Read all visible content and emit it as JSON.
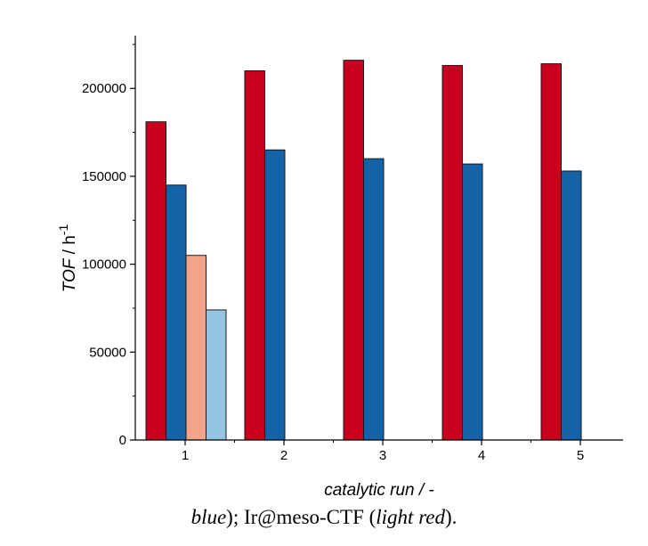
{
  "chart_data": {
    "type": "bar",
    "categories": [
      "1",
      "2",
      "3",
      "4",
      "5"
    ],
    "series": [
      {
        "values": [
          181000,
          210000,
          216000,
          213000,
          214000
        ],
        "color": "#c8001e"
      },
      {
        "values": [
          145000,
          165000,
          160000,
          157000,
          153000
        ],
        "color": "#1462a8"
      },
      {
        "values": [
          105000,
          null,
          null,
          null,
          null
        ],
        "color": "#f3a58b"
      },
      {
        "values": [
          74000,
          null,
          null,
          null,
          null
        ],
        "color": "#95c4e1"
      }
    ],
    "xlabel": "catalytic run / -",
    "ylabel_main": "TOF",
    "ylabel_unit": " / h",
    "ylabel_sup": "-1",
    "ylim": [
      0,
      230000
    ],
    "yticks": [
      0,
      50000,
      100000,
      150000,
      200000
    ],
    "grid": false,
    "legend": "none"
  },
  "caption": {
    "part1": "blue",
    "part2": "); Ir@meso-CTF (",
    "part3": "light red",
    "part4": ")."
  }
}
